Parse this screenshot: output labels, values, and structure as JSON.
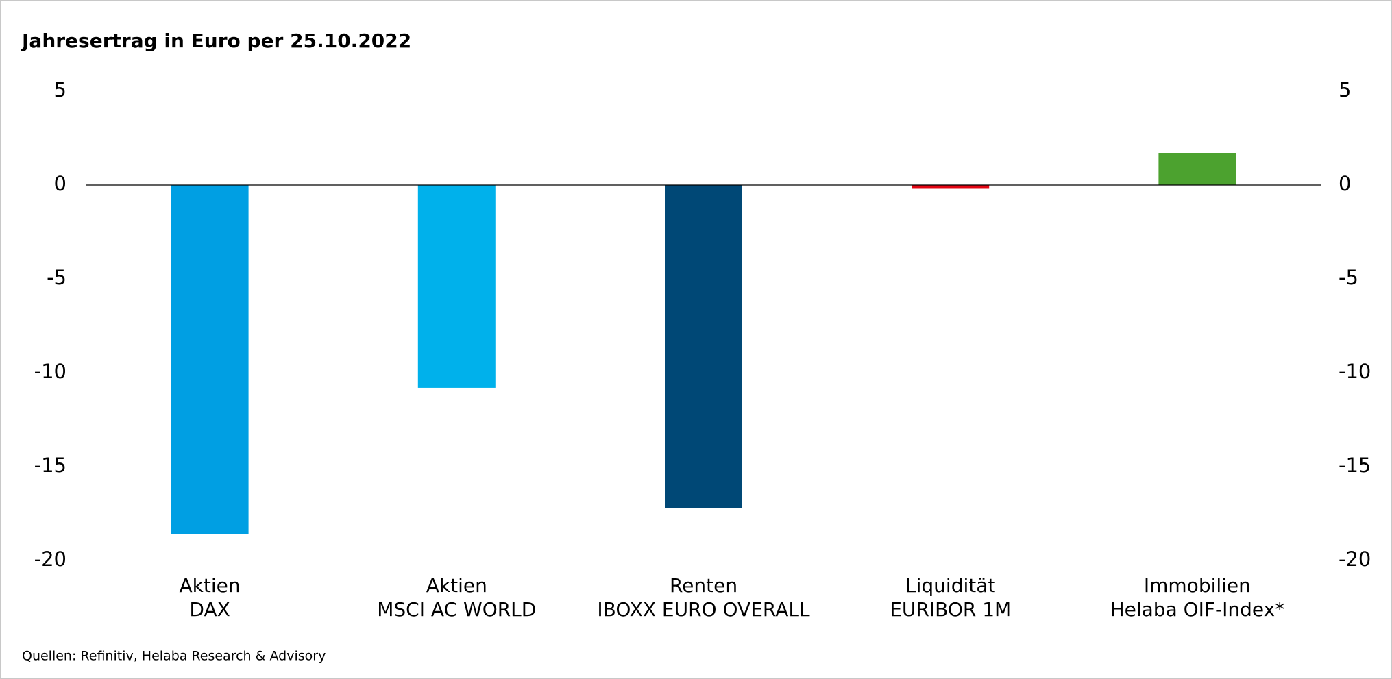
{
  "chart_data": {
    "type": "bar",
    "title": "Jahresertrag in Euro per 25.10.2022",
    "categories": [
      [
        "Aktien",
        "DAX"
      ],
      [
        "Aktien",
        "MSCI AC WORLD"
      ],
      [
        "Renten",
        "IBOXX EURO OVERALL"
      ],
      [
        "Liquidität",
        "EURIBOR 1M"
      ],
      [
        "Immobilien",
        "Helaba OIF-Index*"
      ]
    ],
    "values": [
      -18.6,
      -10.8,
      -17.2,
      -0.2,
      1.7
    ],
    "colors": [
      "#009fe3",
      "#00b1eb",
      "#004876",
      "#e30613",
      "#4ca22f"
    ],
    "ylim": [
      -20,
      5
    ],
    "yticks": [
      5,
      0,
      -5,
      -10,
      -15,
      -20
    ],
    "y2lim": [
      -20,
      5
    ],
    "y2ticks": [
      5,
      0,
      -5,
      -10,
      -15,
      -20
    ],
    "source": "Quellen: Refinitiv, Helaba Research & Advisory"
  }
}
